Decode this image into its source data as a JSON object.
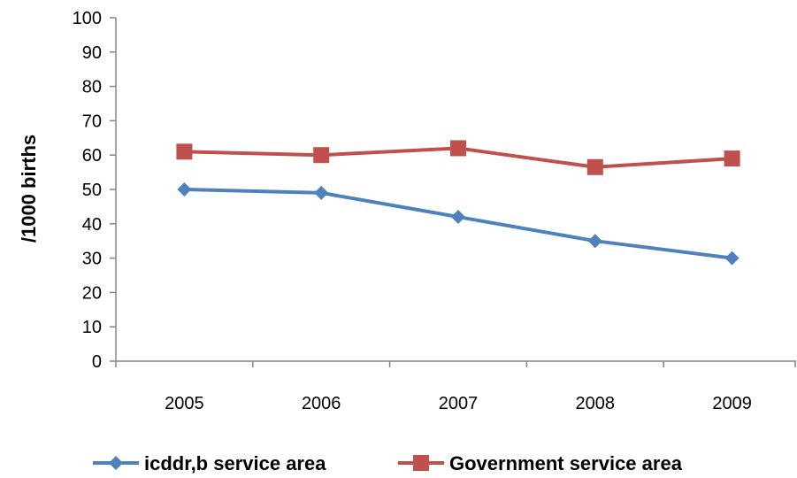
{
  "chart_data": {
    "type": "line",
    "title": "",
    "xlabel": "",
    "ylabel": "/1000 births",
    "ylim": [
      0,
      100
    ],
    "ytick_step": 10,
    "yticks": [
      "0",
      "10",
      "20",
      "30",
      "40",
      "50",
      "60",
      "70",
      "80",
      "90",
      "100"
    ],
    "categories": [
      "2005",
      "2006",
      "2007",
      "2008",
      "2009"
    ],
    "grid": false,
    "legend_position": "bottom",
    "series": [
      {
        "name": "icddr,b service area",
        "color": "#4F81BD",
        "marker": "diamond",
        "values": [
          50,
          49,
          42,
          35,
          30
        ]
      },
      {
        "name": "Government service area",
        "color": "#C0504D",
        "marker": "square",
        "values": [
          61,
          60,
          62,
          56.5,
          59
        ]
      }
    ]
  }
}
